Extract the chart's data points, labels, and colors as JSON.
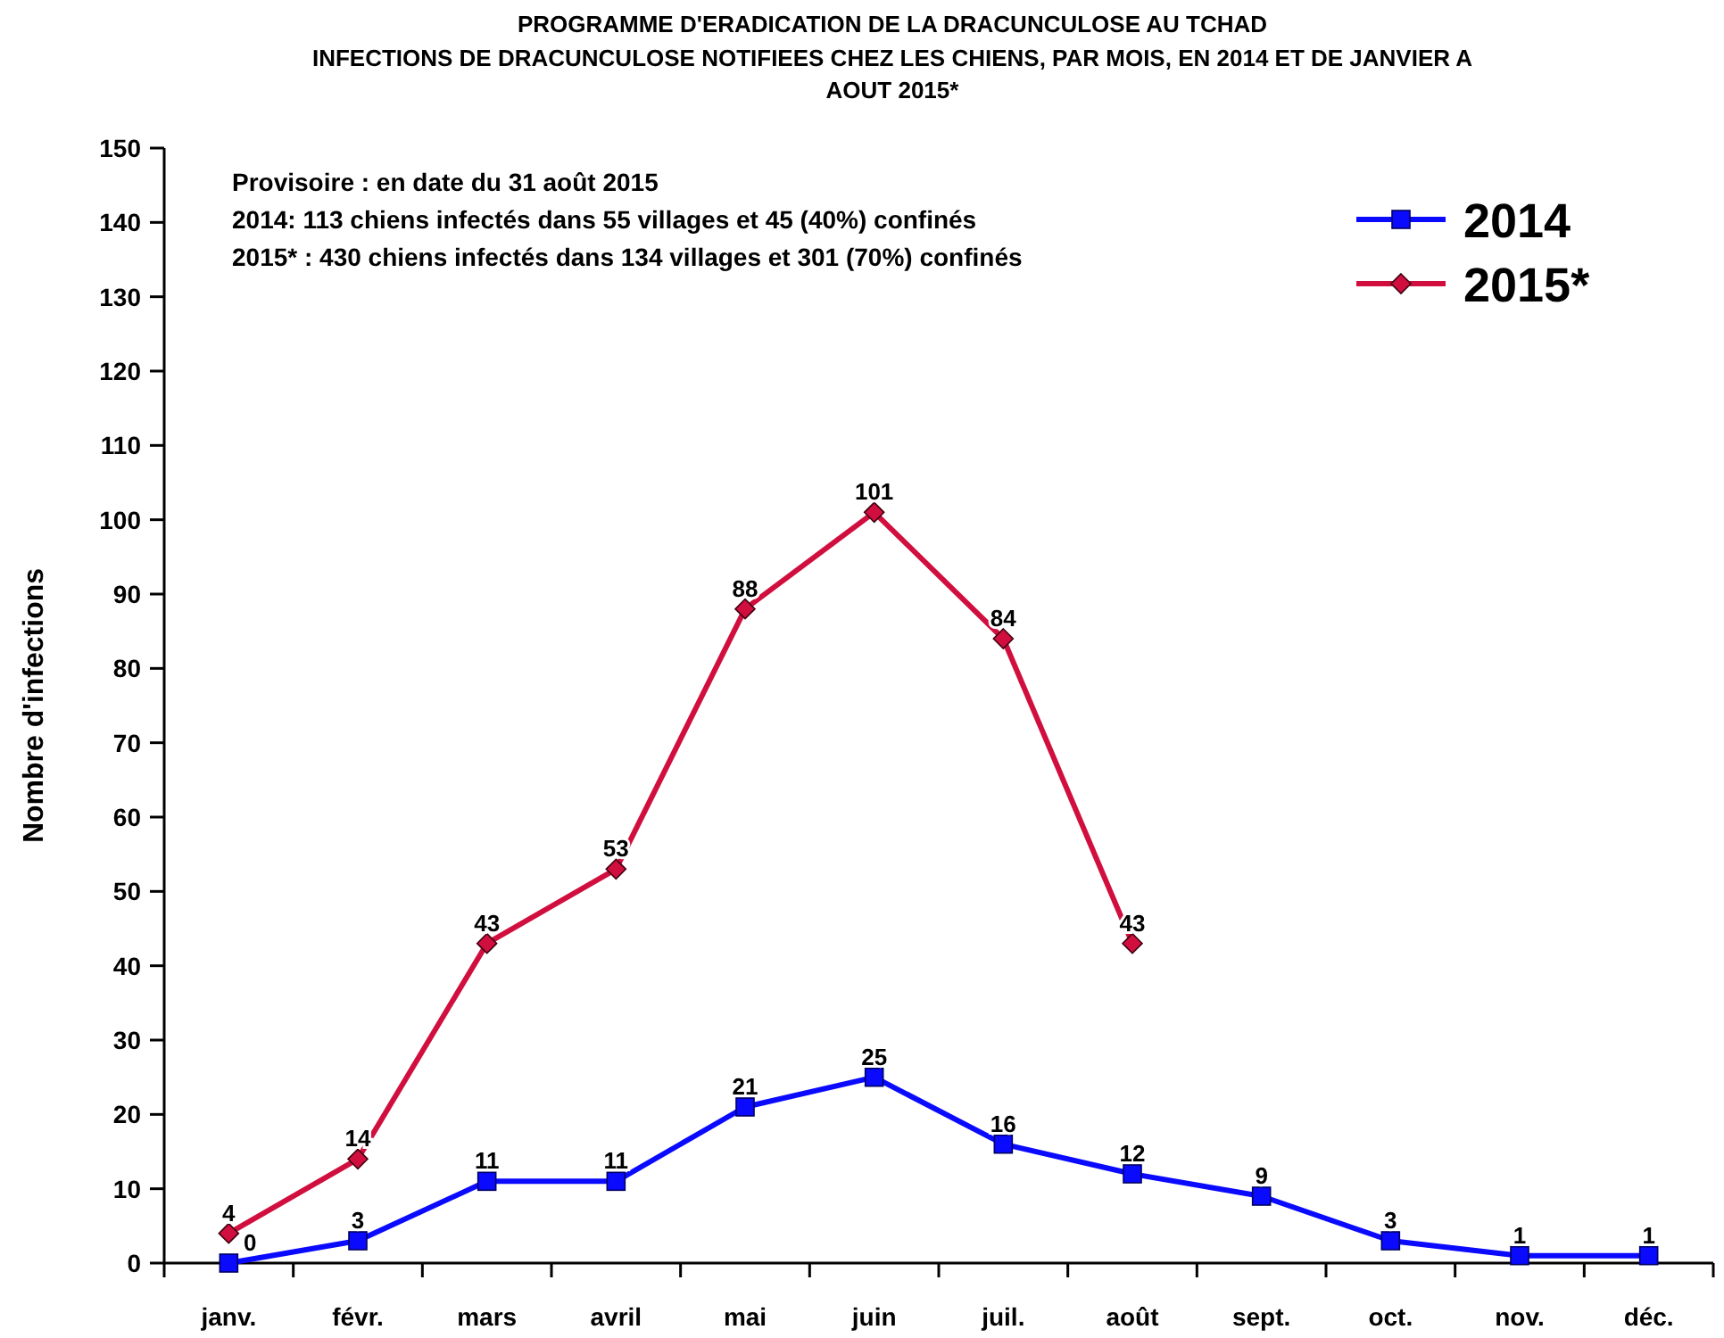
{
  "chart_data": {
    "type": "line",
    "title": "PROGRAMME D'ERADICATION DE LA DRACUNCULOSE AU TCHAD",
    "subtitle": "INFECTIONS DE DRACUNCULOSE NOTIFIEES CHEZ LES CHIENS, PAR MOIS, EN 2014 ET DE JANVIER A AOUT 2015*",
    "ylabel": "Nombre d'infections",
    "annotations": [
      "Provisoire : en date du 31 août 2015",
      "2014: 113 chiens infectés  dans 55 villages et 45 (40%) confinés",
      "2015* : 430 chiens infectés dans 134 villages et 301 (70%) confinés"
    ],
    "categories": [
      "janv.",
      "févr.",
      "mars",
      "avril",
      "mai",
      "juin",
      "juil.",
      "août",
      "sept.",
      "oct.",
      "nov.",
      "déc."
    ],
    "series": [
      {
        "name": "2014",
        "color": "#0a0aff",
        "marker": "square",
        "values": [
          0,
          3,
          11,
          11,
          21,
          25,
          16,
          12,
          9,
          3,
          1,
          1
        ]
      },
      {
        "name": "2015*",
        "color": "#d10f3f",
        "marker": "diamond",
        "values": [
          4,
          14,
          43,
          53,
          88,
          101,
          84,
          43,
          null,
          null,
          null,
          null
        ]
      }
    ],
    "ylim": [
      0,
      150
    ],
    "yticks": [
      0,
      10,
      20,
      30,
      40,
      50,
      60,
      70,
      80,
      90,
      100,
      110,
      120,
      130,
      140,
      150
    ],
    "data_labels": true,
    "grid": false,
    "legend": "top right",
    "line_style": "solid"
  }
}
